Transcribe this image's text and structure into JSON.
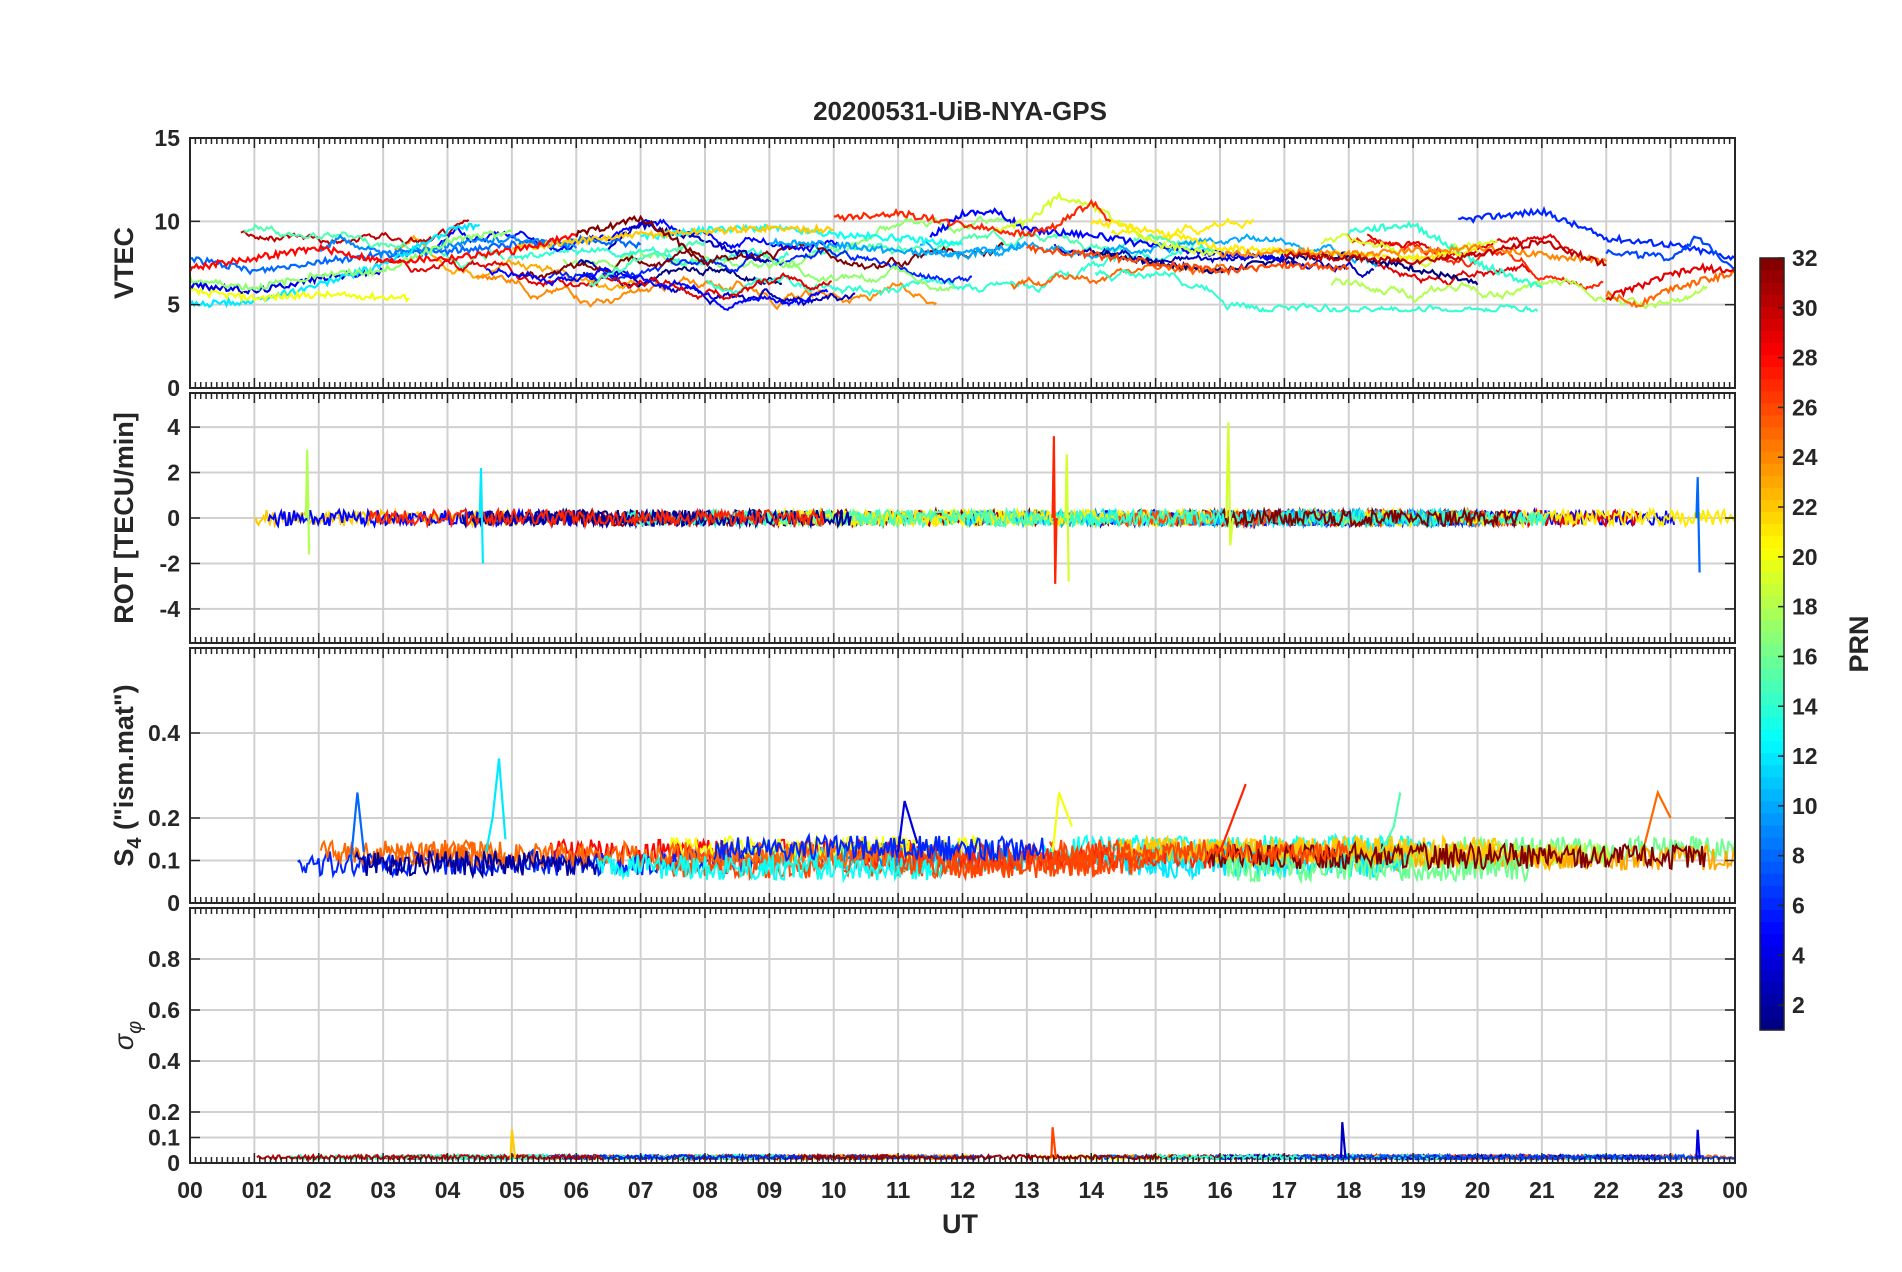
{
  "chart_data": {
    "type": "line",
    "title": "20200531-UiB-NYA-GPS",
    "xlabel": "UT",
    "x_ticks": [
      "00",
      "01",
      "02",
      "03",
      "04",
      "05",
      "06",
      "07",
      "08",
      "09",
      "10",
      "11",
      "12",
      "13",
      "14",
      "15",
      "16",
      "17",
      "18",
      "19",
      "20",
      "21",
      "22",
      "23",
      "00"
    ],
    "xlim": [
      0,
      24
    ],
    "grid": true,
    "panels": [
      {
        "ylabel": "VTEC",
        "ylim": [
          0,
          15
        ],
        "yticks": [
          0,
          5,
          10,
          15
        ],
        "series": [
          {
            "prn": 1,
            "x": [
              14,
              15,
              16,
              17,
              18,
              19,
              20
            ],
            "values": [
              8.2,
              7.5,
              7.0,
              7.8,
              8.0,
              7.2,
              6.2
            ]
          },
          {
            "prn": 3,
            "x": [
              6.5,
              7,
              8,
              9
            ],
            "values": [
              8.5,
              9.8,
              8.8,
              7.6
            ]
          },
          {
            "prn": 4,
            "x": [
              0,
              1,
              2,
              3
            ],
            "values": [
              6.2,
              5.8,
              6.6,
              7.0
            ]
          },
          {
            "prn": 5,
            "x": [
              11.5,
              12,
              12.5,
              13,
              14,
              15,
              16,
              17
            ],
            "values": [
              9.0,
              10.5,
              10.6,
              9.5,
              9.2,
              8.5,
              8.0,
              7.8
            ]
          },
          {
            "prn": 6,
            "x": [
              19.7,
              20,
              21,
              22,
              23,
              24
            ],
            "values": [
              10.0,
              10.2,
              10.6,
              9.0,
              8.6,
              7.8
            ]
          },
          {
            "prn": 7,
            "x": [
              22,
              23,
              23.4,
              24
            ],
            "values": [
              8.2,
              7.8,
              9.0,
              7.2
            ]
          },
          {
            "prn": 8,
            "x": [
              0,
              1,
              2,
              3,
              4,
              5,
              6,
              7
            ],
            "values": [
              7.8,
              7.0,
              7.6,
              8.0,
              8.2,
              8.6,
              8.9,
              8.6
            ]
          },
          {
            "prn": 9,
            "x": [
              2,
              2.3,
              3,
              4,
              5,
              6
            ],
            "values": [
              8.2,
              9.0,
              8.0,
              8.6,
              9.0,
              8.4
            ]
          },
          {
            "prn": 10,
            "x": [
              9,
              10,
              11,
              12,
              13
            ],
            "values": [
              8.8,
              8.6,
              8.2,
              8.0,
              8.6
            ]
          },
          {
            "prn": 12,
            "x": [
              0,
              1,
              2,
              3,
              4,
              4.5
            ],
            "values": [
              5.0,
              5.2,
              6.2,
              7.4,
              9.4,
              9.8
            ]
          },
          {
            "prn": 13,
            "x": [
              7,
              8,
              9,
              10,
              11,
              12
            ],
            "values": [
              9.0,
              9.5,
              9.6,
              9.2,
              9.0,
              8.6
            ]
          },
          {
            "prn": 14,
            "x": [
              18,
              19,
              20,
              21
            ],
            "values": [
              9.4,
              9.8,
              7.5,
              6.0
            ]
          },
          {
            "prn": 15,
            "x": [
              6.2,
              7,
              8
            ],
            "values": [
              6.2,
              7.8,
              8.8
            ]
          },
          {
            "prn": 17,
            "x": [
              0,
              1,
              2,
              3,
              4,
              5
            ],
            "values": [
              6.5,
              6.0,
              6.8,
              7.0,
              8.8,
              9.4
            ]
          },
          {
            "prn": 19,
            "x": [
              12.5,
              13,
              13.5,
              14,
              15,
              16
            ],
            "values": [
              9.4,
              10.0,
              11.5,
              11.0,
              8.6,
              8.0
            ]
          },
          {
            "prn": 20,
            "x": [
              0,
              1,
              2,
              3.4
            ],
            "values": [
              5.8,
              5.4,
              5.6,
              5.4
            ]
          },
          {
            "prn": 21,
            "x": [
              14,
              15,
              16,
              17,
              18,
              19,
              20
            ],
            "values": [
              10.0,
              9.4,
              8.4,
              8.2,
              8.0,
              7.8,
              8.2
            ]
          },
          {
            "prn": 22,
            "x": [
              5,
              6,
              7,
              8,
              9,
              10
            ],
            "values": [
              8.4,
              8.8,
              9.2,
              9.4,
              9.6,
              9.5
            ]
          },
          {
            "prn": 24,
            "x": [
              16,
              17,
              18,
              19,
              20,
              21,
              22
            ],
            "values": [
              8.0,
              8.2,
              8.0,
              8.2,
              8.4,
              8.0,
              7.6
            ]
          },
          {
            "prn": 25,
            "x": [
              22,
              22.5,
              23,
              24
            ],
            "values": [
              5.6,
              5.0,
              6.0,
              6.9
            ]
          },
          {
            "prn": 26,
            "x": [
              13,
              14,
              15,
              16,
              17,
              18
            ],
            "values": [
              8.4,
              8.0,
              7.5,
              7.0,
              7.4,
              7.2
            ]
          },
          {
            "prn": 27,
            "x": [
              10,
              11,
              12,
              13,
              13.5,
              14,
              14.3
            ],
            "values": [
              10.2,
              10.5,
              9.8,
              9.2,
              9.8,
              11.2,
              10.0
            ]
          },
          {
            "prn": 28,
            "x": [
              0,
              1,
              2,
              3,
              4,
              5,
              6
            ],
            "values": [
              7.2,
              7.8,
              8.4,
              7.6,
              7.8,
              8.2,
              9.2
            ]
          },
          {
            "prn": 29,
            "x": [
              22,
              23,
              23.5,
              24
            ],
            "values": [
              5.4,
              6.8,
              7.2,
              7.0
            ]
          },
          {
            "prn": 30,
            "x": [
              17,
              18,
              19,
              20,
              21,
              22
            ],
            "values": [
              8.0,
              7.8,
              7.6,
              8.0,
              8.8,
              7.4
            ]
          },
          {
            "prn": 32,
            "x": [
              6,
              7,
              7.5,
              8
            ],
            "values": [
              9.2,
              10.2,
              9.0,
              7.6
            ]
          }
        ]
      },
      {
        "ylabel": "ROT [TECU/min]",
        "ylim": [
          -5.5,
          5.5
        ],
        "yticks": [
          -4,
          -2,
          0,
          2,
          4
        ],
        "series": [
          {
            "prn": 27,
            "x": [
              13.4,
              13.42,
              13.44,
              13.46
            ],
            "values": [
              0,
              3.6,
              -2.9,
              0
            ]
          },
          {
            "prn": 19,
            "x": [
              16.1,
              16.13,
              16.16,
              16.2
            ],
            "values": [
              0,
              4.2,
              -1.2,
              0
            ]
          },
          {
            "prn": 18,
            "x": [
              1.8,
              1.82,
              1.85
            ],
            "values": [
              0,
              3.0,
              -1.6
            ]
          },
          {
            "prn": 12,
            "x": [
              4.5,
              4.52,
              4.55
            ],
            "values": [
              0,
              2.2,
              -2.0
            ]
          },
          {
            "prn": 19,
            "x": [
              13.6,
              13.62,
              13.65
            ],
            "values": [
              0,
              2.8,
              -2.8
            ]
          },
          {
            "prn": 8,
            "x": [
              23.4,
              23.42,
              23.45
            ],
            "values": [
              0,
              1.8,
              -2.4
            ]
          }
        ]
      },
      {
        "ylabel": "S4 (\"ism.mat\")",
        "ylim": [
          0,
          0.6
        ],
        "yticks": [
          0,
          0.1,
          0.2,
          0.4
        ],
        "series": [
          {
            "prn": 12,
            "x": [
              4.6,
              4.7,
              4.8,
              4.9
            ],
            "values": [
              0.12,
              0.2,
              0.34,
              0.15
            ]
          },
          {
            "prn": 8,
            "x": [
              2.5,
              2.6,
              2.7
            ],
            "values": [
              0.1,
              0.26,
              0.12
            ]
          },
          {
            "prn": 27,
            "x": [
              16,
              16.2,
              16.4
            ],
            "values": [
              0.12,
              0.2,
              0.28
            ]
          },
          {
            "prn": 20,
            "x": [
              13.4,
              13.5,
              13.7
            ],
            "values": [
              0.12,
              0.26,
              0.18
            ]
          },
          {
            "prn": 25,
            "x": [
              22.6,
              22.8,
              23
            ],
            "values": [
              0.14,
              0.26,
              0.2
            ]
          },
          {
            "prn": 15,
            "x": [
              18.5,
              18.7,
              18.8
            ],
            "values": [
              0.12,
              0.18,
              0.26
            ]
          },
          {
            "prn": 4,
            "x": [
              11,
              11.1,
              11.3
            ],
            "values": [
              0.12,
              0.24,
              0.14
            ]
          }
        ]
      },
      {
        "ylabel": "σφ",
        "ylim": [
          0,
          1.0
        ],
        "yticks": [
          0,
          0.1,
          0.2,
          0.4,
          0.6,
          0.8
        ],
        "series": [
          {
            "prn": 22,
            "x": [
              4.98,
              5.0,
              5.05
            ],
            "values": [
              0.02,
              0.13,
              0.02
            ]
          },
          {
            "prn": 26,
            "x": [
              13.38,
              13.4,
              13.45
            ],
            "values": [
              0.02,
              0.14,
              0.02
            ]
          },
          {
            "prn": 3,
            "x": [
              17.88,
              17.9,
              17.95
            ],
            "values": [
              0.02,
              0.16,
              0.02
            ]
          },
          {
            "prn": 4,
            "x": [
              23.4,
              23.42,
              23.45
            ],
            "values": [
              0.02,
              0.13,
              0.02
            ]
          }
        ]
      }
    ],
    "colorbar": {
      "label": "PRN",
      "range": [
        1,
        32
      ],
      "ticks": [
        2,
        4,
        6,
        8,
        10,
        12,
        14,
        16,
        18,
        20,
        22,
        24,
        26,
        28,
        30,
        32
      ],
      "colormap": "jet"
    }
  }
}
